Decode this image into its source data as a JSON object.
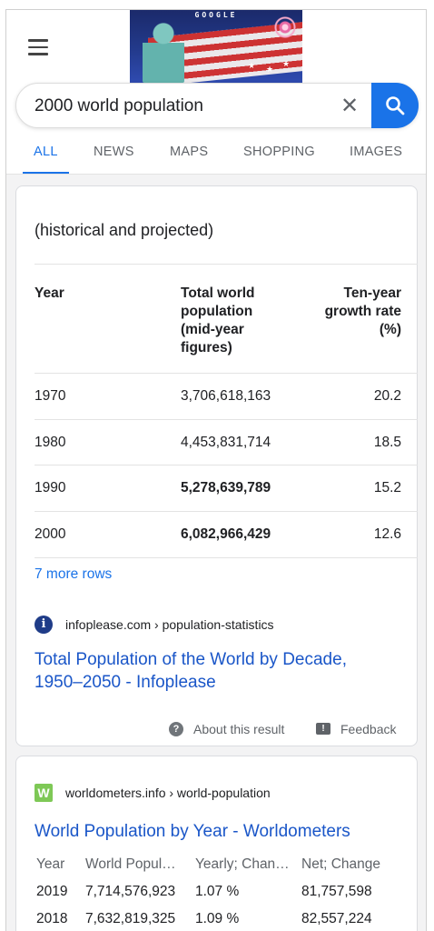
{
  "header": {
    "doodle_text": "GOOGLE",
    "search_query": "2000 world population"
  },
  "tabs": [
    {
      "label": "ALL",
      "active": true
    },
    {
      "label": "NEWS",
      "active": false
    },
    {
      "label": "MAPS",
      "active": false
    },
    {
      "label": "SHOPPING",
      "active": false
    },
    {
      "label": "IMAGES",
      "active": false
    }
  ],
  "featured": {
    "heading": "(historical and projected)",
    "columns": [
      "Year",
      "Total world population (mid-year figures)",
      "Ten-year growth rate (%)"
    ],
    "rows": [
      {
        "year": "1970",
        "population": "3,706,618,163",
        "growth": "20.2"
      },
      {
        "year": "1980",
        "population": "4,453,831,714",
        "growth": "18.5"
      },
      {
        "year": "1990",
        "population": "5,278,639,789",
        "growth": "15.2"
      },
      {
        "year": "2000",
        "population": "6,082,966,429",
        "growth": "12.6"
      }
    ],
    "more_rows": "7 more rows",
    "source_url": "infoplease.com › population-statistics",
    "result_title": "Total Population of the World by Decade, 1950–2050 - Infoplease",
    "about_label": "About this result",
    "feedback_label": "Feedback"
  },
  "result2": {
    "icon_letter": "W",
    "source_url": "worldometers.info › world-population",
    "title": "World Population by Year - Worldometers",
    "columns": [
      "Year",
      "World Popul…",
      "Yearly; Chan…",
      "Net; Change"
    ],
    "rows": [
      {
        "year": "2019",
        "population": "7,714,576,923",
        "yearly_change": "1.07 %",
        "net_change": "81,757,598"
      },
      {
        "year": "2018",
        "population": "7,632,819,325",
        "yearly_change": "1.09 %",
        "net_change": "82,557,224"
      }
    ]
  },
  "colors": {
    "accent": "#1a73e8",
    "link": "#1a56c8"
  }
}
